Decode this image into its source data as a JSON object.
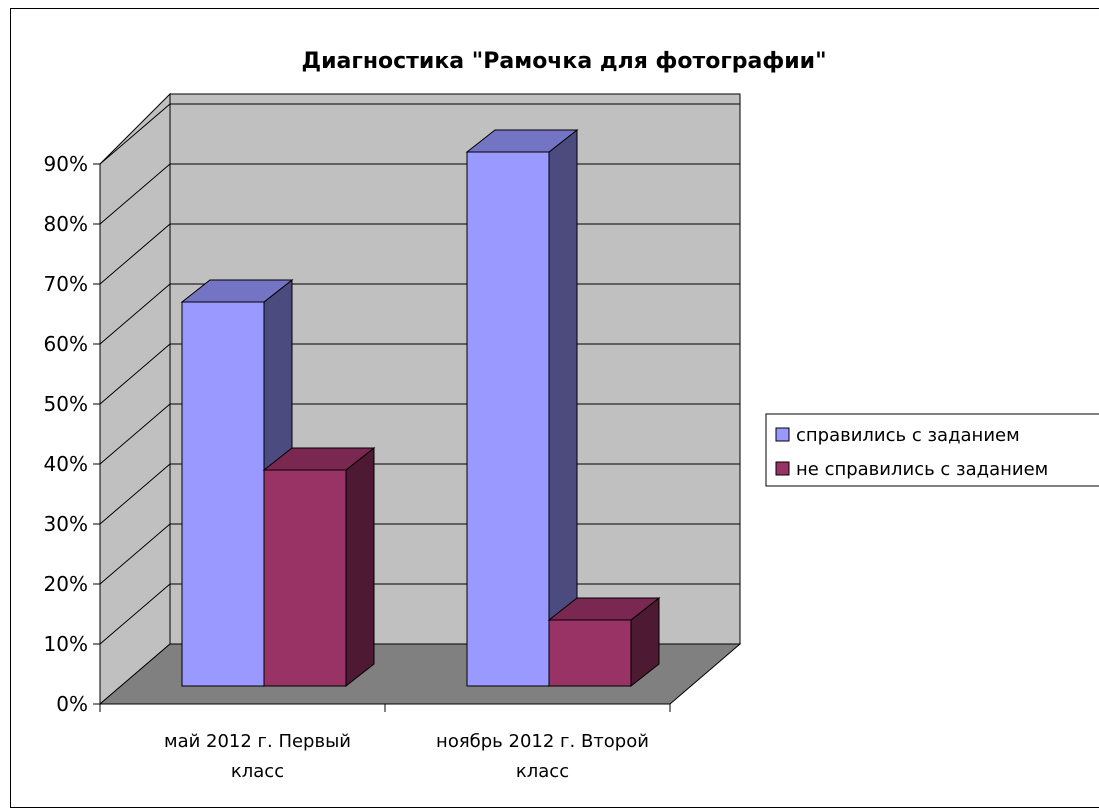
{
  "chart_data": {
    "type": "bar",
    "title": "Диагностика \"Рамочка для фотографии\"",
    "xlabel": "",
    "ylabel": "",
    "ylim": [
      0,
      90
    ],
    "y_ticks": [
      "0%",
      "10%",
      "20%",
      "30%",
      "40%",
      "50%",
      "60%",
      "70%",
      "80%",
      "90%"
    ],
    "categories": [
      [
        "май 2012 г. Первый",
        "класс"
      ],
      [
        "ноябрь 2012 г. Второй",
        "класс"
      ]
    ],
    "series": [
      {
        "name": "справились с заданием",
        "values": [
          64,
          89
        ],
        "color": "#9999ff",
        "side_color": "#4b4b80",
        "top_color": "#7474c4"
      },
      {
        "name": "не справились с заданием",
        "values": [
          36,
          11
        ],
        "color": "#993366",
        "side_color": "#4d1933",
        "top_color": "#7a2751"
      }
    ],
    "legend_position": "right",
    "grid": true,
    "style": "3d-clustered-column",
    "colors": {
      "wall": "#c0c0c0",
      "floor": "#808080",
      "border": "#000000"
    }
  }
}
